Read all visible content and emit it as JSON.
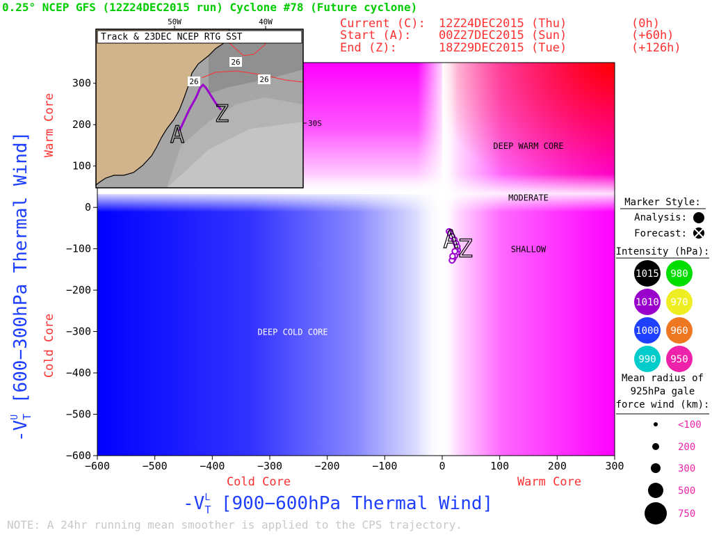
{
  "header": {
    "title": "0.25° NCEP GFS (12Z24DEC2015 run) Cyclone #78 (Future cyclone)",
    "title_color": "#00cc00",
    "times": [
      {
        "label": "Current (C):",
        "date": "12Z24DEC2015 (Thu)",
        "offset": "(0h)"
      },
      {
        "label": "Start (A):",
        "date": "00Z27DEC2015 (Sun)",
        "offset": "(+60h)"
      },
      {
        "label": "End (Z):",
        "date": "18Z29DEC2015 (Tue)",
        "offset": "(+126h)"
      }
    ],
    "times_color": "#ff3030"
  },
  "chart_data": {
    "type": "scatter",
    "title": "",
    "xlabel": "-VT L [900-600hPa Thermal Wind]",
    "ylabel": "-VT U [600-300hPa Thermal Wind]",
    "x_label_main": "-V",
    "x_label_sub": "T",
    "x_label_sup": "L",
    "x_label_rest": " [900−600hPa Thermal Wind]",
    "y_label_main": "-V",
    "y_label_sub": "T",
    "y_label_sup": "U",
    "y_label_rest": " [600−300hPa Thermal Wind]",
    "xlim": [
      -600,
      300
    ],
    "ylim": [
      -600,
      350
    ],
    "xticks": [
      -600,
      -500,
      -400,
      -300,
      -200,
      -100,
      0,
      100,
      200,
      300
    ],
    "xtick_labels": [
      "−600",
      "−500",
      "−400",
      "−300",
      "−200",
      "−100",
      "0",
      "100",
      "200",
      "300"
    ],
    "yticks": [
      -600,
      -500,
      -400,
      -300,
      -200,
      -100,
      0,
      100,
      200,
      300
    ],
    "ytick_labels": [
      "−600",
      "−500",
      "−400",
      "−300",
      "−200",
      "−100",
      "0",
      "100",
      "200",
      "300"
    ],
    "x_side_labels": {
      "left": "Cold Core",
      "right": "Warm Core"
    },
    "y_side_labels": {
      "bottom": "Cold Core",
      "top": "Warm Core"
    },
    "region_labels": [
      {
        "text": "DEEP WARM CORE",
        "x": 150,
        "y": 150
      },
      {
        "text": "MODERATE",
        "x": 150,
        "y": 25
      },
      {
        "text": "SHALLOW",
        "x": 150,
        "y": -100
      },
      {
        "text": "DEEP COLD CORE",
        "x": -260,
        "y": -300
      }
    ],
    "trajectory": {
      "color": "#9900cc",
      "intensity_hpa": 1010,
      "x": [
        12,
        14,
        17,
        21,
        24,
        26,
        27,
        25,
        22,
        19,
        17,
        18,
        22,
        26
      ],
      "y": [
        -58,
        -63,
        -70,
        -78,
        -87,
        -95,
        -103,
        -110,
        -117,
        -124,
        -128,
        -118,
        -106,
        -95
      ],
      "start_label": "A",
      "end_label": "Z",
      "start": [
        15,
        -85
      ],
      "end": [
        40,
        -130
      ]
    }
  },
  "inset": {
    "title": "Track & 23DEC NCEP RTG SST",
    "lon_labels": [
      "50W",
      "40W"
    ],
    "lat_label": "30S",
    "sst_labels": [
      "26",
      "26",
      "26"
    ],
    "start_label": "A",
    "end_label": "Z"
  },
  "legend": {
    "marker_style_title": "Marker Style:",
    "analysis_label": "Analysis:",
    "forecast_label": "Forecast:",
    "intensity_title": "Intensity (hPa):",
    "intensity_items": [
      {
        "value": "1015",
        "color": "#000000",
        "text_color": "#ffffff"
      },
      {
        "value": "980",
        "color": "#00dd00",
        "text_color": "#ffffff"
      },
      {
        "value": "1010",
        "color": "#9900cc",
        "text_color": "#ffffff"
      },
      {
        "value": "970",
        "color": "#eeee22",
        "text_color": "#ffffff"
      },
      {
        "value": "1000",
        "color": "#1f3fff",
        "text_color": "#ffffff"
      },
      {
        "value": "960",
        "color": "#ee7722",
        "text_color": "#ffffff"
      },
      {
        "value": "990",
        "color": "#00cccc",
        "text_color": "#ffffff"
      },
      {
        "value": "950",
        "color": "#ee22aa",
        "text_color": "#ffffff"
      }
    ],
    "radius_title_lines": [
      "Mean radius of",
      "925hPa gale",
      "force wind (km):"
    ],
    "radius_items": [
      {
        "label": "<100",
        "r": 3
      },
      {
        "label": "200",
        "r": 5
      },
      {
        "label": "300",
        "r": 7
      },
      {
        "label": "500",
        "r": 11
      },
      {
        "label": "750",
        "r": 16
      }
    ],
    "radius_label_color": "#ee22aa"
  },
  "footer": {
    "note": "NOTE:  A 24hr running mean smoother is applied to the CPS trajectory.",
    "color": "#c8c8c8"
  },
  "colors": {
    "blue_axis_label": "#1f3fff",
    "red_side_label": "#ff3030"
  }
}
